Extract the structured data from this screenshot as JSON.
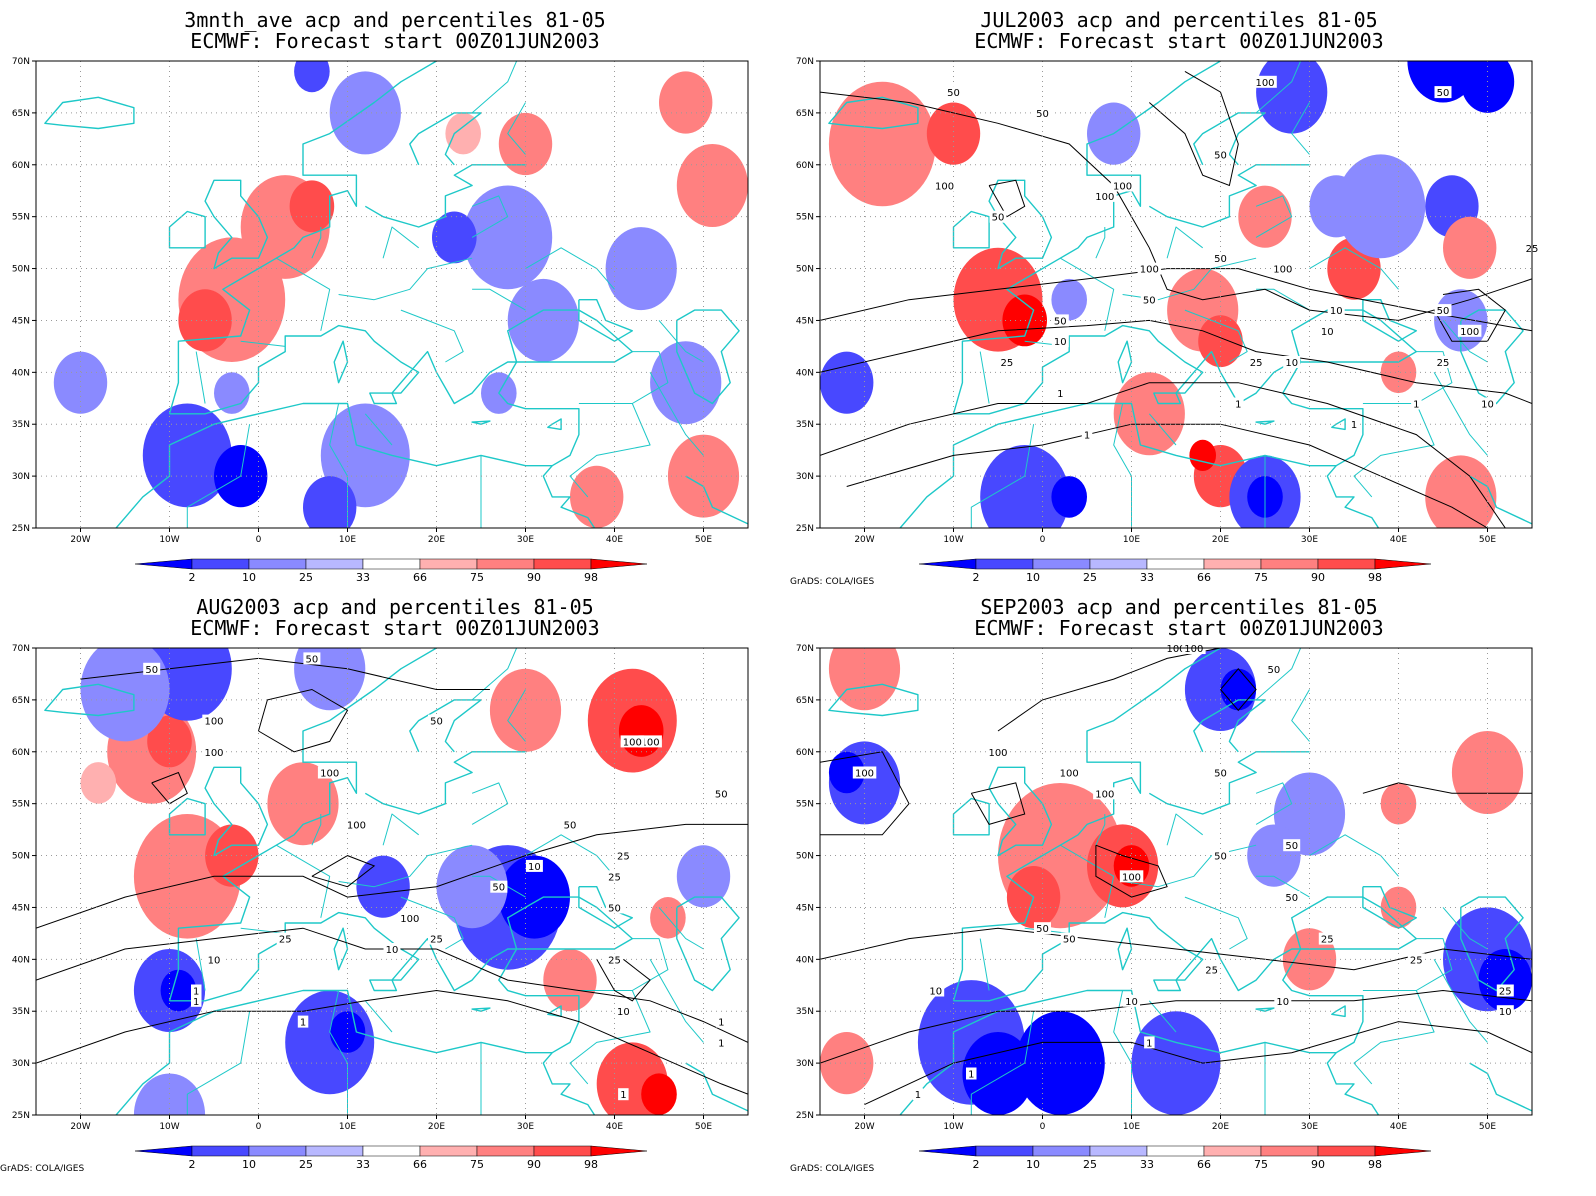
{
  "colors": {
    "blue_levels": [
      "#0000ff",
      "#4848ff",
      "#8a8aff",
      "#b8b8ff"
    ],
    "red_levels": [
      "#ffb0b0",
      "#ff8080",
      "#ff4c4c",
      "#ff0000"
    ],
    "coast": "#1ec8c8",
    "contour": "#000000",
    "grid": "#9a9a9a"
  },
  "lon_labels": [
    "20W",
    "10W",
    "0",
    "10E",
    "20E",
    "30E",
    "40E",
    "50E"
  ],
  "lat_labels": [
    "70N",
    "65N",
    "60N",
    "55N",
    "50N",
    "45N",
    "40N",
    "35N",
    "30N",
    "25N"
  ],
  "colorbar_labels": [
    "2",
    "10",
    "25",
    "33",
    "66",
    "75",
    "90",
    "98"
  ],
  "credit_text": "GrADS: COLA/IGES",
  "panels": [
    {
      "title_line1": "3mnth_ave acp and percentiles 81-05",
      "title_line2": "ECMWF: Forecast start 00Z01JUN2003",
      "contour_labels": []
    },
    {
      "title_line1": "JUL2003 acp and percentiles 81-05",
      "title_line2": "ECMWF: Forecast start 00Z01JUN2003",
      "contour_labels": [
        "50",
        "100",
        "50",
        "50",
        "100",
        "50",
        "100",
        "100",
        "50",
        "25",
        "100",
        "50",
        "100",
        "50",
        "10",
        "50",
        "10",
        "10",
        "50",
        "100",
        "25",
        "10",
        "25",
        "25",
        "1",
        "1",
        "10",
        "1",
        "1",
        "1"
      ]
    },
    {
      "title_line1": "AUG2003 acp and percentiles 81-05",
      "title_line2": "ECMWF: Forecast start 00Z01JUN2003",
      "contour_labels": [
        "50",
        "50",
        "100",
        "50",
        "100",
        "100",
        "100",
        "100",
        "100",
        "50",
        "50",
        "25",
        "100",
        "10",
        "50",
        "25",
        "50",
        "25",
        "10",
        "1",
        "25",
        "10",
        "25",
        "10",
        "1",
        "1",
        "1",
        "1",
        "1"
      ]
    },
    {
      "title_line1": "SEP2003 acp and percentiles 81-05",
      "title_line2": "ECMWF: Forecast start 00Z01JUN2003",
      "contour_labels": [
        "100",
        "100",
        "50",
        "100",
        "100",
        "50",
        "100",
        "100",
        "50",
        "100",
        "50",
        "50",
        "50",
        "25",
        "50",
        "25",
        "25",
        "10",
        "10",
        "10",
        "25",
        "10",
        "1",
        "1",
        "1"
      ]
    }
  ]
}
